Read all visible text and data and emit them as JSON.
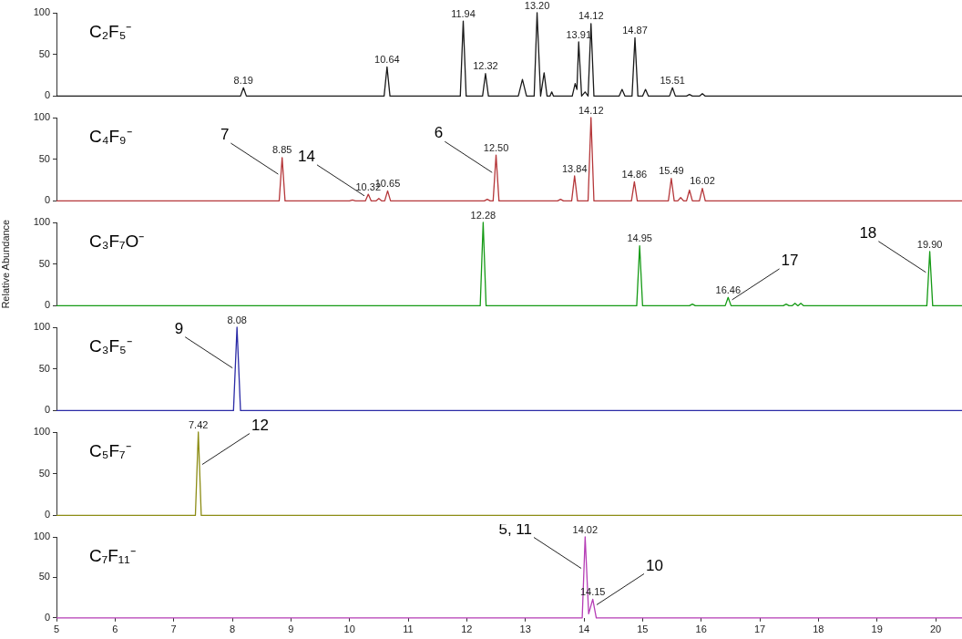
{
  "chart_data": [
    {
      "type": "line",
      "title": "C₂F₅⁻",
      "xlim": [
        5,
        20.45
      ],
      "ylim": [
        0,
        100
      ],
      "yticks": [
        0,
        50,
        100
      ],
      "tick_labels": "y",
      "annotations": [
        {
          "text": "8.19",
          "x": 8.19,
          "y": 10
        },
        {
          "text": "10.64",
          "x": 10.64,
          "y": 35
        },
        {
          "text": "11.94",
          "x": 11.94,
          "y": 90
        },
        {
          "text": "12.32",
          "x": 12.32,
          "y": 27
        },
        {
          "text": "13.20",
          "x": 13.2,
          "y": 100
        },
        {
          "text": "13.91",
          "x": 13.91,
          "y": 65
        },
        {
          "text": "14.12",
          "x": 14.12,
          "y": 87
        },
        {
          "text": "14.87",
          "x": 14.87,
          "y": 70
        },
        {
          "text": "15.51",
          "x": 15.51,
          "y": 10
        }
      ],
      "series": [
        {
          "color": "#1a1a1a",
          "x": [
            5,
            8.14,
            8.19,
            8.24,
            10.59,
            10.64,
            10.69,
            11.89,
            11.94,
            11.99,
            12.27,
            12.32,
            12.37,
            12.88,
            12.95,
            13.02,
            13.15,
            13.2,
            13.26,
            13.32,
            13.37,
            13.42,
            13.45,
            13.48,
            13.8,
            13.85,
            13.88,
            13.91,
            13.96,
            14.02,
            14.07,
            14.12,
            14.17,
            14.6,
            14.65,
            14.7,
            14.82,
            14.87,
            14.92,
            15,
            15.05,
            15.1,
            15.46,
            15.51,
            15.56,
            15.75,
            15.8,
            15.85,
            15.97,
            16.02,
            16.07,
            20.45
          ],
          "values": [
            0,
            0,
            10,
            0,
            0,
            35,
            0,
            0,
            90,
            0,
            0,
            27,
            0,
            0,
            20,
            0,
            0,
            100,
            0,
            28,
            0,
            0,
            5,
            0,
            0,
            15,
            8,
            65,
            0,
            5,
            0,
            87,
            0,
            0,
            8,
            0,
            0,
            70,
            0,
            0,
            8,
            0,
            0,
            10,
            0,
            0,
            2,
            0,
            0,
            3,
            0,
            0
          ]
        }
      ]
    },
    {
      "type": "line",
      "title": "C₄F₉⁻",
      "xlim": [
        5,
        20.45
      ],
      "ylim": [
        0,
        100
      ],
      "yticks": [
        0,
        50,
        100
      ],
      "tick_labels": "y",
      "annotations": [
        {
          "text": "8.85",
          "x": 8.85,
          "y": 52
        },
        {
          "text": "10.32",
          "x": 10.32,
          "y": 8
        },
        {
          "text": "10.65",
          "x": 10.65,
          "y": 12
        },
        {
          "text": "12.50",
          "x": 12.5,
          "y": 55
        },
        {
          "text": "13.84",
          "x": 13.84,
          "y": 30
        },
        {
          "text": "14.12",
          "x": 14.12,
          "y": 100
        },
        {
          "text": "14.86",
          "x": 14.86,
          "y": 23
        },
        {
          "text": "15.49",
          "x": 15.49,
          "y": 27
        },
        {
          "text": "16.02",
          "x": 16.02,
          "y": 15
        },
        {
          "text": "7",
          "x": 8.83,
          "y": 31
        },
        {
          "text": "14",
          "x": 10.3,
          "y": 5
        },
        {
          "text": "6",
          "x": 12.48,
          "y": 33
        }
      ],
      "series": [
        {
          "color": "#b5373a",
          "x": [
            5,
            8.8,
            8.85,
            8.9,
            10,
            10.05,
            10.1,
            10.27,
            10.32,
            10.37,
            10.45,
            10.5,
            10.55,
            10.6,
            10.65,
            10.7,
            12.3,
            12.35,
            12.4,
            12.45,
            12.5,
            12.55,
            13.55,
            13.6,
            13.65,
            13.79,
            13.84,
            13.89,
            14.07,
            14.12,
            14.17,
            14.81,
            14.86,
            14.91,
            15.44,
            15.49,
            15.54,
            15.6,
            15.65,
            15.7,
            15.75,
            15.8,
            15.85,
            15.97,
            16.02,
            16.07,
            20.45
          ],
          "values": [
            0,
            0,
            52,
            0,
            0,
            1,
            0,
            0,
            8,
            0,
            0,
            3,
            0,
            0,
            12,
            0,
            0,
            2,
            0,
            0,
            55,
            0,
            0,
            2,
            0,
            0,
            30,
            0,
            0,
            100,
            0,
            0,
            23,
            0,
            0,
            27,
            0,
            0,
            4,
            0,
            0,
            13,
            0,
            0,
            15,
            0,
            0
          ]
        }
      ]
    },
    {
      "type": "line",
      "title": "C₃F₇O⁻",
      "ylabel": "Relative Abundance",
      "xlim": [
        5,
        20.45
      ],
      "ylim": [
        0,
        100
      ],
      "yticks": [
        0,
        50,
        100
      ],
      "tick_labels": "y",
      "annotations": [
        {
          "text": "12.28",
          "x": 12.28,
          "y": 100
        },
        {
          "text": "14.95",
          "x": 14.95,
          "y": 72
        },
        {
          "text": "16.46",
          "x": 16.46,
          "y": 10
        },
        {
          "text": "19.90",
          "x": 19.9,
          "y": 65
        },
        {
          "text": "17",
          "x": 16.48,
          "y": 6
        },
        {
          "text": "18",
          "x": 19.88,
          "y": 39
        }
      ],
      "series": [
        {
          "color": "#159a15",
          "x": [
            5,
            12.23,
            12.28,
            12.33,
            14.9,
            14.95,
            15,
            15.8,
            15.85,
            15.9,
            16.41,
            16.46,
            16.51,
            17.4,
            17.45,
            17.5,
            17.55,
            17.6,
            17.65,
            17.7,
            17.75,
            19.85,
            19.9,
            19.95,
            20.45
          ],
          "values": [
            0,
            0,
            100,
            0,
            0,
            72,
            0,
            0,
            2,
            0,
            0,
            10,
            0,
            0,
            2,
            0,
            0,
            3,
            0,
            3,
            0,
            0,
            65,
            0,
            0
          ]
        }
      ]
    },
    {
      "type": "line",
      "title": "C₃F₅⁻",
      "xlim": [
        5,
        20.45
      ],
      "ylim": [
        0,
        100
      ],
      "yticks": [
        0,
        50,
        100
      ],
      "tick_labels": "y",
      "annotations": [
        {
          "text": "8.08",
          "x": 8.08,
          "y": 100
        },
        {
          "text": "9",
          "x": 8.05,
          "y": 50
        }
      ],
      "series": [
        {
          "color": "#2b2ba6",
          "x": [
            5,
            8.02,
            8.08,
            8.14,
            20.45
          ],
          "values": [
            0,
            0,
            100,
            0,
            0
          ]
        }
      ]
    },
    {
      "type": "line",
      "title": "C₅F₇⁻",
      "xlim": [
        5,
        20.45
      ],
      "ylim": [
        0,
        100
      ],
      "yticks": [
        0,
        50,
        100
      ],
      "tick_labels": "y",
      "annotations": [
        {
          "text": "7.42",
          "x": 7.42,
          "y": 100
        },
        {
          "text": "12",
          "x": 7.44,
          "y": 60
        }
      ],
      "series": [
        {
          "color": "#8c8c14",
          "x": [
            5,
            7.37,
            7.42,
            7.47,
            20.45
          ],
          "values": [
            0,
            0,
            100,
            0,
            0
          ]
        }
      ]
    },
    {
      "type": "line",
      "title": "C₇F₁₁⁻",
      "xlim": [
        5,
        20.45
      ],
      "ylim": [
        0,
        100
      ],
      "yticks": [
        0,
        50,
        100
      ],
      "xticks": [
        5,
        6,
        7,
        8,
        9,
        10,
        11,
        12,
        13,
        14,
        15,
        16,
        17,
        18,
        19,
        20
      ],
      "annotations": [
        {
          "text": "14.02",
          "x": 14.02,
          "y": 100
        },
        {
          "text": "14.15",
          "x": 14.15,
          "y": 23
        },
        {
          "text": "5, 11",
          "x": 14,
          "y": 60
        },
        {
          "text": "10",
          "x": 14.17,
          "y": 15
        }
      ],
      "series": [
        {
          "color": "#b53cb5",
          "x": [
            5,
            13.97,
            14.02,
            14.08,
            14.15,
            14.21,
            20.45
          ],
          "values": [
            0,
            0,
            100,
            5,
            23,
            0,
            0
          ]
        }
      ]
    }
  ]
}
